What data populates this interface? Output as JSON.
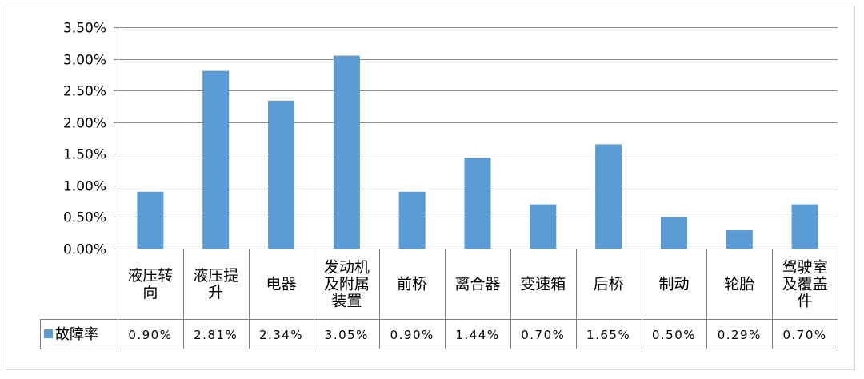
{
  "chart_data": {
    "type": "bar",
    "title": "",
    "xlabel": "",
    "ylabel": "",
    "ylim": [
      0,
      0.035
    ],
    "y_ticks": [
      "0.00%",
      "0.50%",
      "1.00%",
      "1.50%",
      "2.00%",
      "2.50%",
      "3.00%",
      "3.50%"
    ],
    "grid": true,
    "legend": "data-table-left",
    "categories": [
      "液压转向",
      "液压提升",
      "电器",
      "发动机及附属装置",
      "前桥",
      "离合器",
      "变速箱",
      "后桥",
      "制动",
      "轮胎",
      "驾驶室及覆盖件"
    ],
    "category_lines": [
      [
        "液压转",
        "向"
      ],
      [
        "液压提",
        "升"
      ],
      [
        "电器"
      ],
      [
        "发动机",
        "及附属",
        "装置"
      ],
      [
        "前桥"
      ],
      [
        "离合器"
      ],
      [
        "变速箱"
      ],
      [
        "后桥"
      ],
      [
        "制动"
      ],
      [
        "轮胎"
      ],
      [
        "驾驶室",
        "及覆盖",
        "件"
      ]
    ],
    "series": [
      {
        "name": "故障率",
        "values": [
          0.009,
          0.0281,
          0.0234,
          0.0305,
          0.009,
          0.0144,
          0.007,
          0.0165,
          0.005,
          0.0029,
          0.007
        ],
        "labels": [
          "0.90%",
          "2.81%",
          "2.34%",
          "3.05%",
          "0.90%",
          "1.44%",
          "0.70%",
          "1.65%",
          "0.50%",
          "0.29%",
          "0.70%"
        ],
        "color": "#5b9bd5"
      }
    ],
    "colors": {
      "grid": "#8c8c8c",
      "axis": "#7f7f7f",
      "bar": "#5b9bd5",
      "text": "#000000"
    }
  }
}
